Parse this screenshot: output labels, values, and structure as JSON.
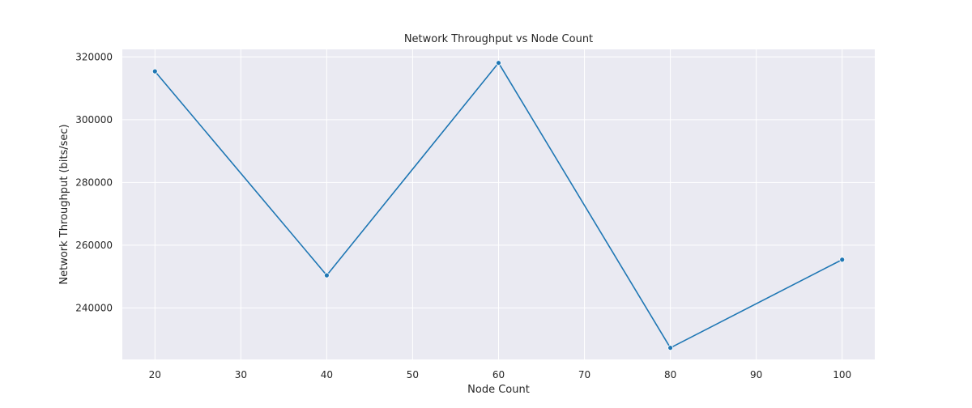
{
  "chart_data": {
    "type": "line",
    "title": "Network Throughput vs Node Count",
    "xlabel": "Node Count",
    "ylabel": "Network Throughput (bits/sec)",
    "xlim": [
      16.2,
      103.8
    ],
    "ylim": [
      223600,
      322400
    ],
    "x_ticks": [
      20,
      30,
      40,
      50,
      60,
      70,
      80,
      90,
      100
    ],
    "y_ticks": [
      240000,
      260000,
      280000,
      300000,
      320000
    ],
    "grid": true,
    "legend": "none",
    "series": [
      {
        "x": [
          20,
          40,
          60,
          80,
          100
        ],
        "values": [
          315400,
          250400,
          318100,
          227300,
          255400
        ],
        "color": "#1f77b4",
        "marker": "circle"
      }
    ],
    "style": {
      "plot_background": "#eaeaf2",
      "grid_color": "#ffffff",
      "text_color": "#262626"
    }
  }
}
